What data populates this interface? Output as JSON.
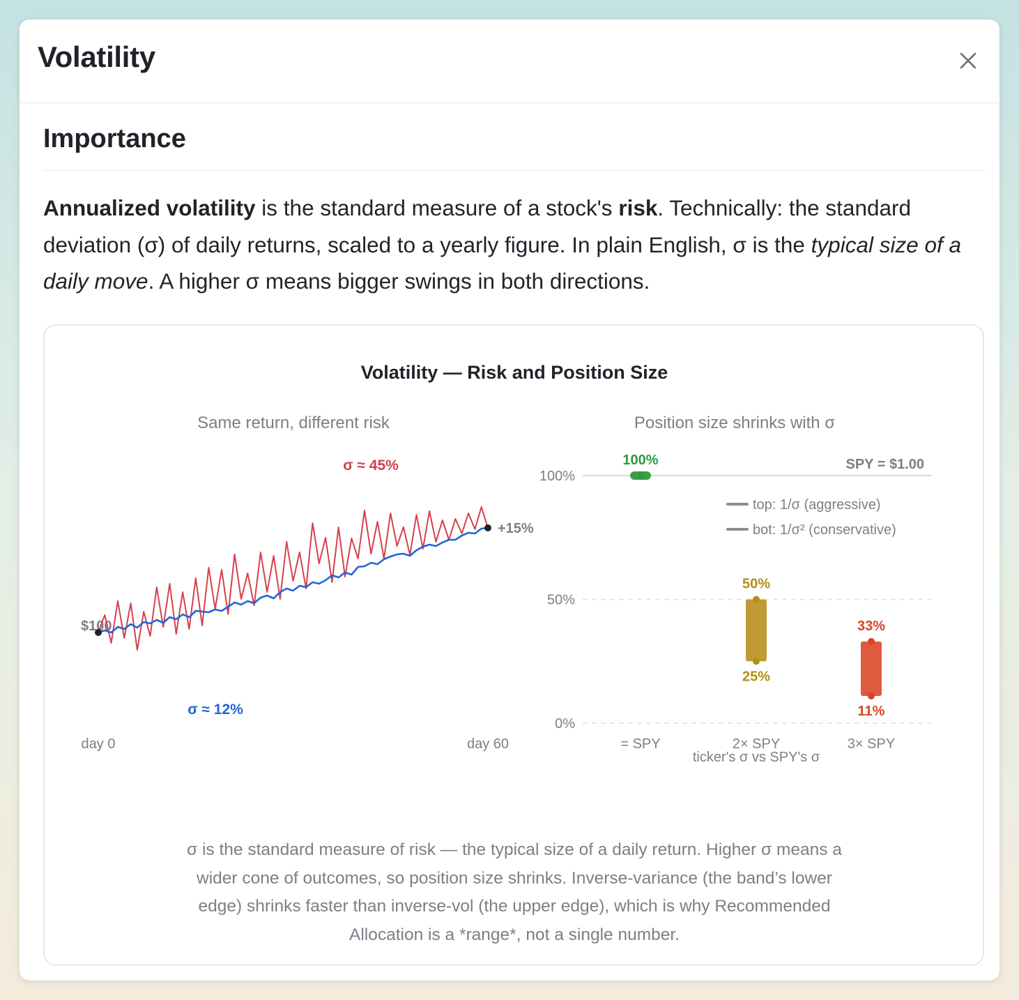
{
  "modal": {
    "title": "Volatility",
    "close_icon": "close-icon"
  },
  "section": {
    "title": "Importance",
    "intro": [
      {
        "text": "Annualized volatility",
        "style": "bold"
      },
      {
        "text": " is the standard measure of a stock's ",
        "style": "normal"
      },
      {
        "text": "risk",
        "style": "bold"
      },
      {
        "text": ". Technically: the standard deviation (σ) of daily returns, scaled to a yearly figure. In plain English, σ is the ",
        "style": "normal"
      },
      {
        "text": "typical size of a daily move",
        "style": "italic"
      },
      {
        "text": ". A higher σ means bigger swings in both directions.",
        "style": "normal"
      }
    ]
  },
  "figure": {
    "title": "Volatility — Risk and Position Size",
    "caption": "σ is the standard measure of risk — the typical size of a daily return. Higher σ means a wider cone of outcomes, so position size shrinks. Inverse-variance (the band’s lower edge) shrinks faster than inverse-vol (the upper edge), which is why Recommended Allocation is a *range*, not a single number."
  },
  "chart_data": [
    {
      "type": "line",
      "title": "Same return, different risk",
      "x_tick_labels": [
        "day 0",
        "day 60"
      ],
      "x": [
        0,
        1,
        2,
        3,
        4,
        5,
        6,
        7,
        8,
        9,
        10,
        11,
        12,
        13,
        14,
        15,
        16,
        17,
        18,
        19,
        20,
        21,
        22,
        23,
        24,
        25,
        26,
        27,
        28,
        29,
        30,
        31,
        32,
        33,
        34,
        35,
        36,
        37,
        38,
        39,
        40,
        41,
        42,
        43,
        44,
        45,
        46,
        47,
        48,
        49,
        50,
        51,
        52,
        53,
        54,
        55,
        56,
        57,
        58,
        59,
        60
      ],
      "ylim": [
        92,
        120
      ],
      "grid": false,
      "annotations": [
        "$100",
        "+15%"
      ],
      "series": [
        {
          "name": "σ ≈ 45%",
          "color": "#d6404a",
          "values": [
            100,
            102.5,
            98.5,
            104.5,
            99.2,
            104.2,
            97.5,
            103.0,
            99.5,
            106.5,
            100.8,
            107.0,
            99.8,
            105.8,
            100.5,
            107.8,
            101.0,
            109.3,
            103.4,
            109.0,
            102.6,
            111.2,
            104.8,
            108.5,
            103.9,
            111.5,
            105.8,
            111.0,
            104.8,
            113.0,
            107.4,
            111.5,
            106.3,
            115.7,
            109.9,
            113.6,
            107.2,
            115.1,
            108.0,
            113.5,
            110.6,
            117.5,
            111.3,
            115.9,
            110.6,
            117.1,
            112.4,
            115.1,
            111.1,
            116.9,
            112.0,
            117.4,
            113.0,
            116.1,
            113.3,
            116.3,
            114.2,
            117.1,
            114.8,
            118.0,
            115.0
          ]
        },
        {
          "name": "σ ≈ 12%",
          "color": "#2166d6",
          "values": [
            100,
            100.3,
            100.0,
            100.8,
            100.5,
            101.2,
            100.7,
            101.5,
            101.3,
            101.8,
            101.4,
            102.2,
            101.9,
            102.6,
            102.2,
            103.1,
            103.0,
            102.9,
            103.3,
            103.1,
            103.7,
            104.3,
            104.0,
            104.5,
            104.2,
            105.0,
            105.3,
            104.9,
            105.8,
            106.3,
            106.0,
            106.7,
            106.5,
            107.2,
            107.0,
            107.5,
            108.2,
            107.9,
            108.6,
            108.3,
            109.4,
            109.5,
            110.0,
            109.8,
            110.5,
            110.9,
            111.2,
            111.3,
            111.0,
            111.8,
            112.3,
            112.6,
            112.4,
            112.9,
            113.3,
            113.3,
            113.9,
            114.3,
            114.2,
            114.9,
            115.0
          ]
        }
      ]
    },
    {
      "type": "bar",
      "title": "Position size shrinks with σ",
      "xlabel": "ticker's σ vs SPY's σ",
      "categories": [
        "= SPY",
        "2× SPY",
        "3× SPY"
      ],
      "ylim": [
        0,
        100
      ],
      "y_ticks": [
        "0%",
        "50%",
        "100%"
      ],
      "reference_label": "SPY = $1.00",
      "legend": [
        "top: 1/σ (aggressive)",
        "bot: 1/σ² (conservative)"
      ],
      "legend_position": "top-right",
      "ranges": [
        {
          "category": "= SPY",
          "top": 100,
          "bottom": 100,
          "top_label": "100%",
          "bottom_label": "",
          "color": "#3c9e4a",
          "label_color": "#2b9b3c"
        },
        {
          "category": "2× SPY",
          "top": 50,
          "bottom": 25,
          "top_label": "50%",
          "bottom_label": "25%",
          "color": "#c09a35",
          "label_color": "#b58e12"
        },
        {
          "category": "3× SPY",
          "top": 33,
          "bottom": 11,
          "top_label": "33%",
          "bottom_label": "11%",
          "color": "#e05a40",
          "label_color": "#d94327"
        }
      ]
    }
  ]
}
